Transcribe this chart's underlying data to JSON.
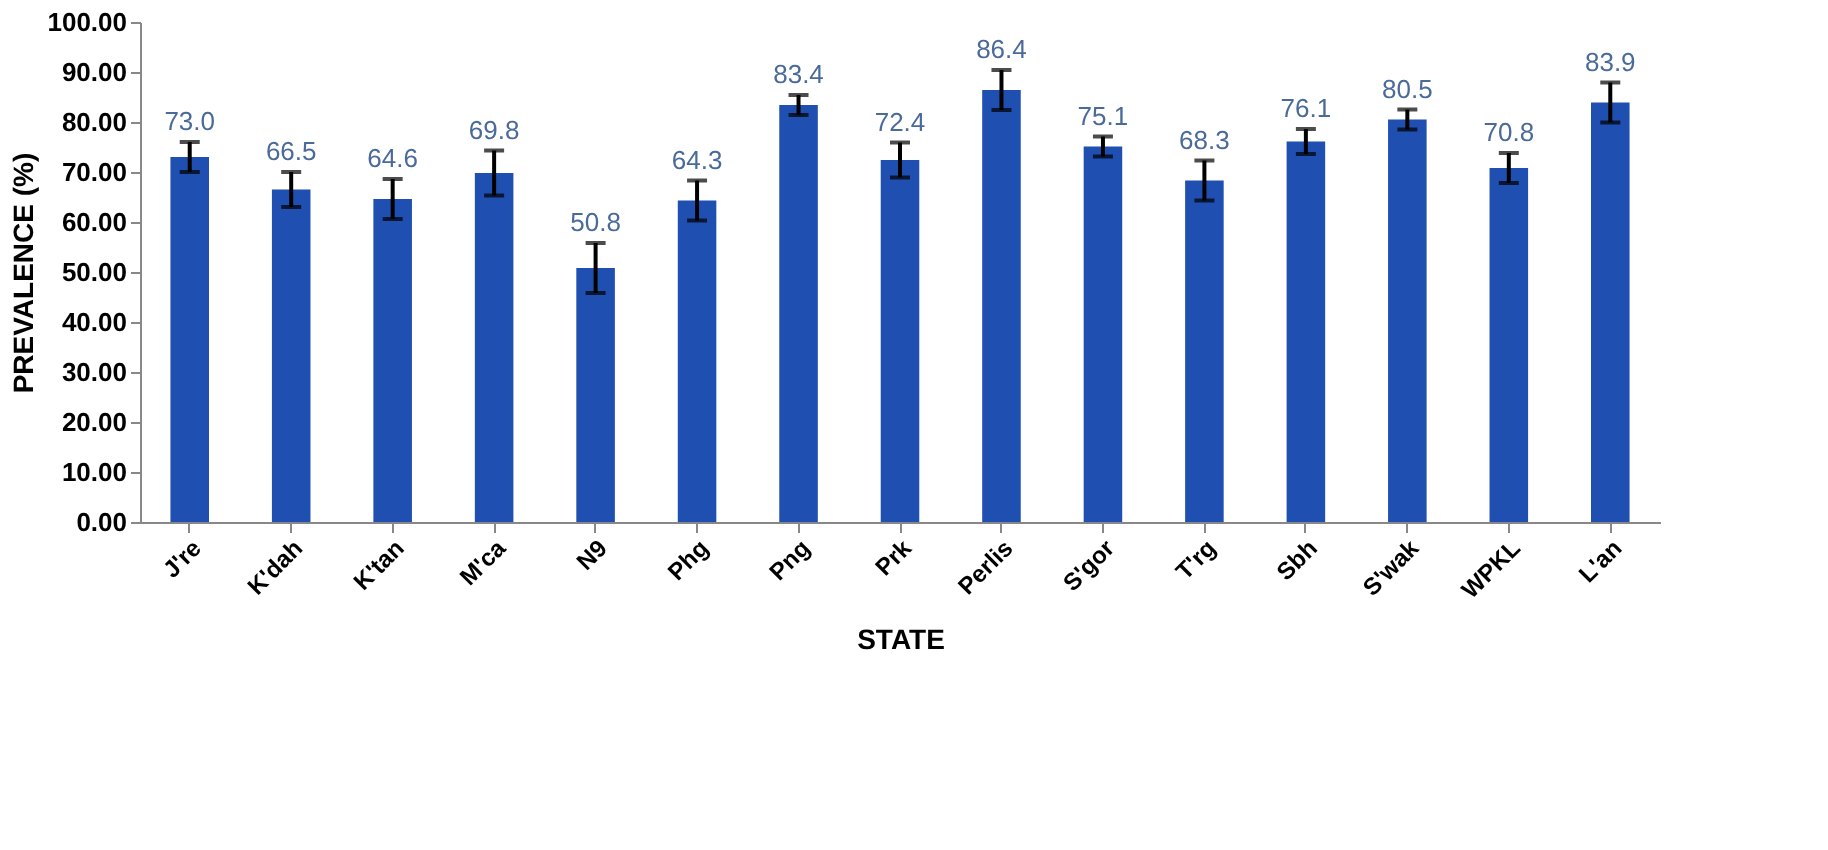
{
  "chart_data": {
    "type": "bar",
    "xlabel": "STATE",
    "ylabel": "PREVALENCE (%)",
    "categories": [
      "J're",
      "K'dah",
      "K'tan",
      "M'ca",
      "N9",
      "Phg",
      "Png",
      "Prk",
      "Perlis",
      "S'gor",
      "T'rg",
      "Sbh",
      "S'wak",
      "WPKL",
      "L'an"
    ],
    "values": [
      73.0,
      66.5,
      64.6,
      69.8,
      50.8,
      64.3,
      83.4,
      72.4,
      86.4,
      75.1,
      68.3,
      76.1,
      80.5,
      70.8,
      83.9
    ],
    "errors": [
      3,
      3.5,
      4,
      4.5,
      5,
      4,
      2,
      3.5,
      4,
      2,
      4,
      2.5,
      2,
      3,
      4
    ],
    "value_labels": [
      "73.0",
      "66.5",
      "64.6",
      "69.8",
      "50.8",
      "64.3",
      "83.4",
      "72.4",
      "86.4",
      "75.1",
      "68.3",
      "76.1",
      "80.5",
      "70.8",
      "83.9"
    ],
    "color": "#1f4fb0",
    "grid": false,
    "ylim": [
      0,
      100
    ],
    "yticks": [
      {
        "value": 0,
        "label": "0.00"
      },
      {
        "value": 10,
        "label": "10.00"
      },
      {
        "value": 20,
        "label": "20.00"
      },
      {
        "value": 30,
        "label": "30.00"
      },
      {
        "value": 40,
        "label": "40.00"
      },
      {
        "value": 50,
        "label": "50.00"
      },
      {
        "value": 60,
        "label": "60.00"
      },
      {
        "value": 70,
        "label": "70.00"
      },
      {
        "value": 80,
        "label": "80.00"
      },
      {
        "value": 90,
        "label": "90.00"
      },
      {
        "value": 100,
        "label": "100.00"
      }
    ]
  }
}
